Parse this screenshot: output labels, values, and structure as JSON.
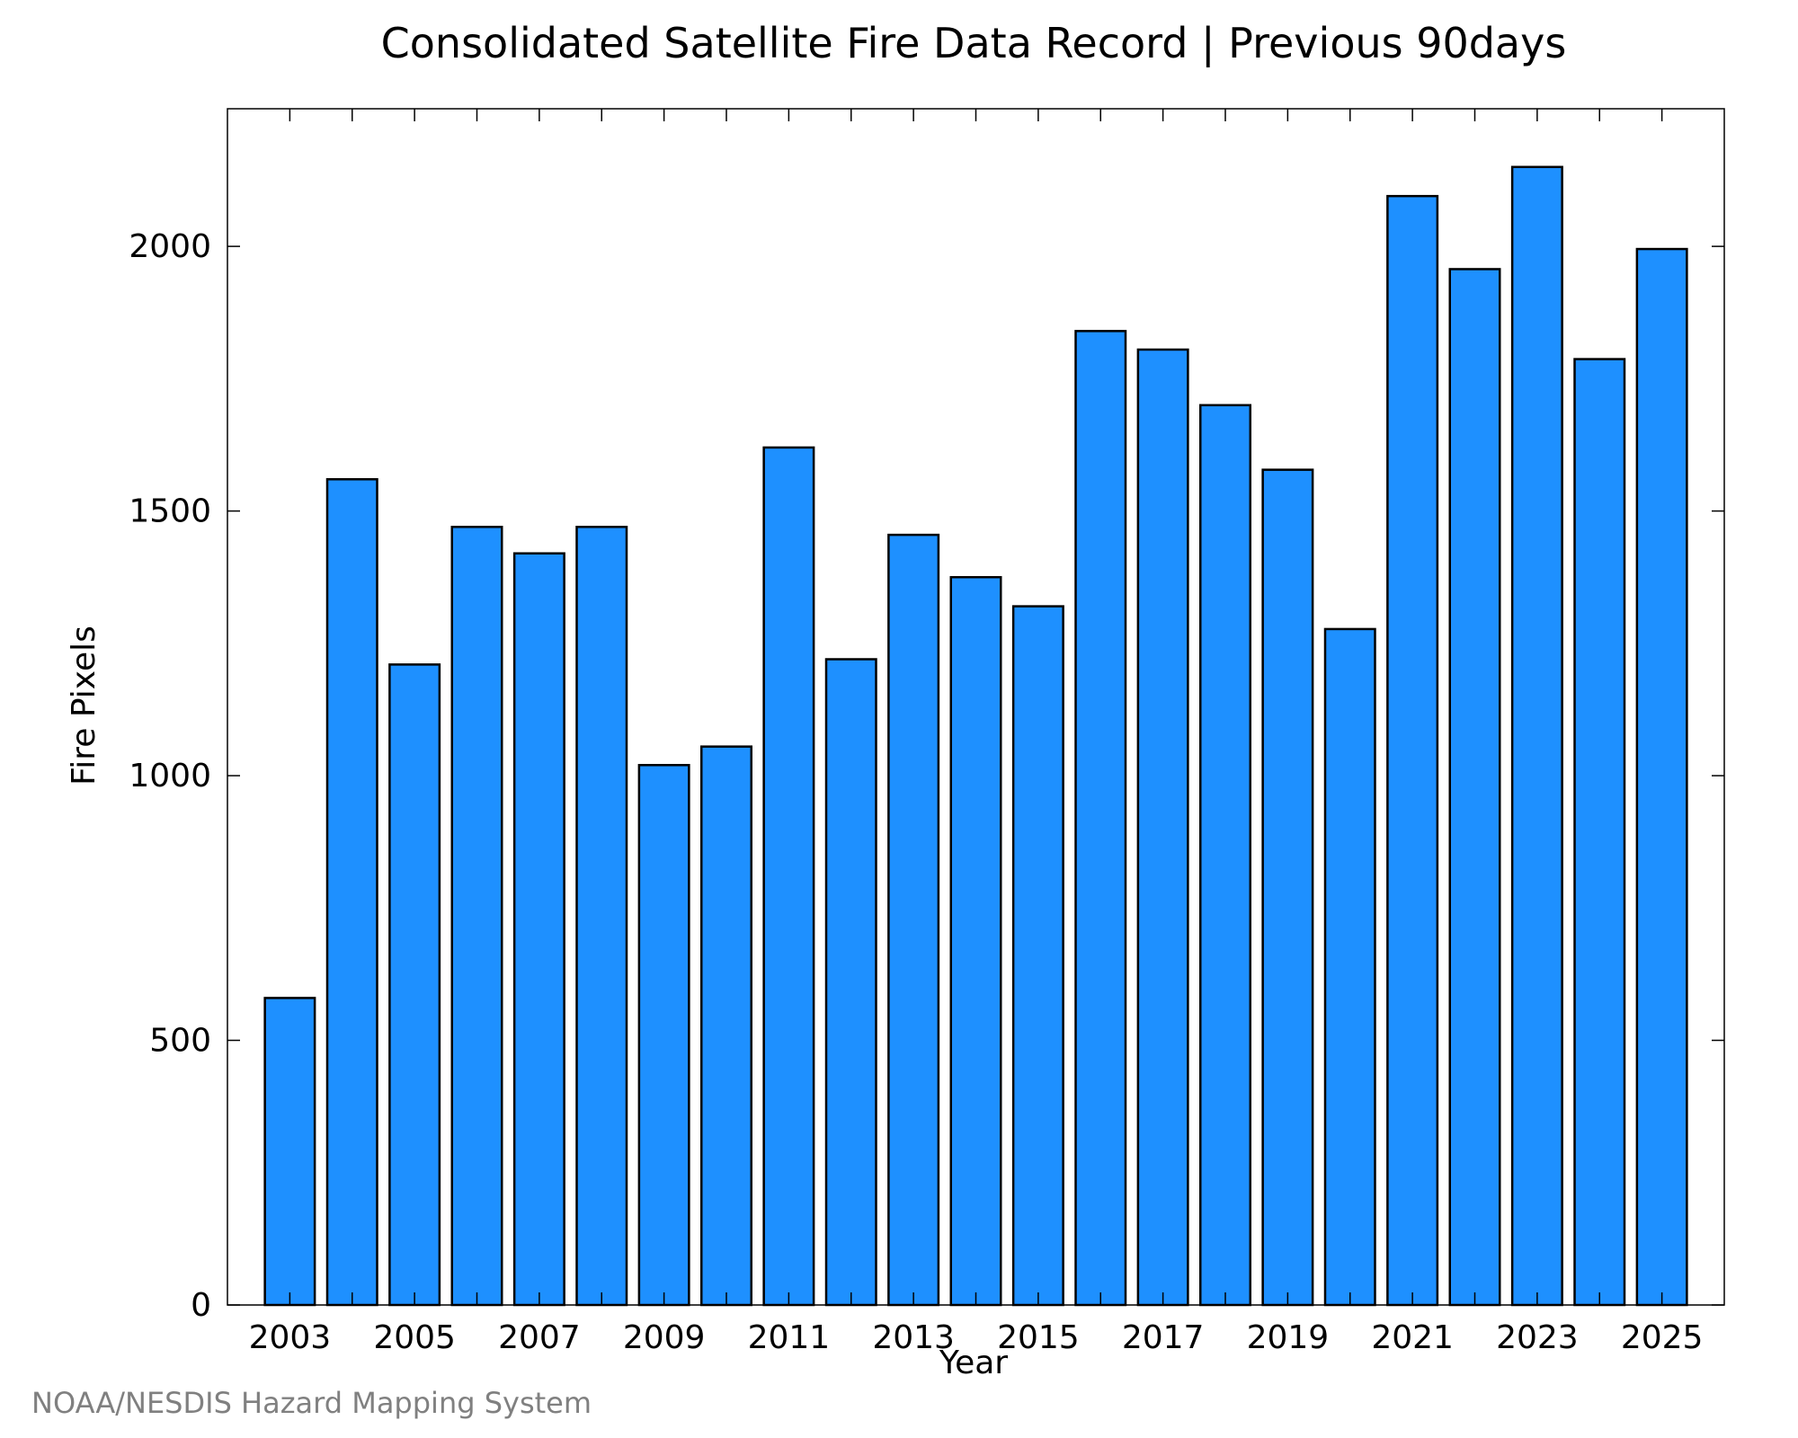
{
  "chart_data": {
    "type": "bar",
    "title": "Consolidated Satellite Fire Data Record | Previous 90days",
    "xlabel": "Year",
    "ylabel": "Fire Pixels",
    "categories": [
      "2003",
      "2004",
      "2005",
      "2006",
      "2007",
      "2008",
      "2009",
      "2010",
      "2011",
      "2012",
      "2013",
      "2014",
      "2015",
      "2016",
      "2017",
      "2018",
      "2019",
      "2020",
      "2021",
      "2022",
      "2023",
      "2024",
      "2025"
    ],
    "values": [
      580,
      1560,
      1210,
      1470,
      1420,
      1470,
      1020,
      1055,
      1620,
      1220,
      1455,
      1375,
      1320,
      1840,
      1805,
      1700,
      1578,
      1277,
      2095,
      1957,
      2150,
      1787,
      1995
    ],
    "x_tick_labels": [
      "2003",
      "2005",
      "2007",
      "2009",
      "2011",
      "2013",
      "2015",
      "2017",
      "2019",
      "2021",
      "2023",
      "2025"
    ],
    "y_ticks": [
      0,
      500,
      1000,
      1500,
      2000
    ],
    "ylim": [
      0,
      2260
    ],
    "grid": false,
    "bar_color": "#1e90ff",
    "bar_edge_color": "#000000"
  },
  "footer": {
    "credit": "NOAA/NESDIS Hazard Mapping System"
  }
}
